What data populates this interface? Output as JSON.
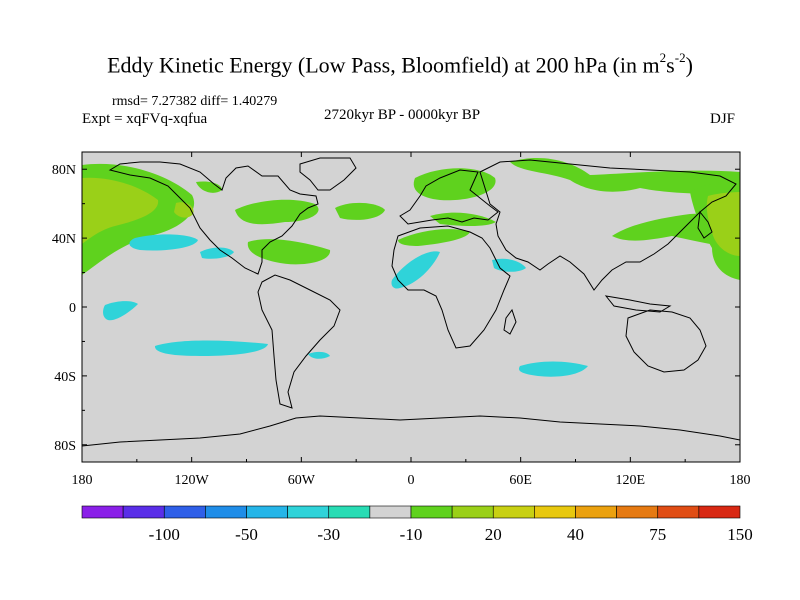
{
  "title": {
    "main": "Eddy Kinetic Energy (Low Pass, Bloomfield) at 200 hPa (in m",
    "sup1": "2",
    "mid": "s",
    "sup2": "-2",
    "end": ")"
  },
  "stats": "rmsd= 7.27382 diff= 1.40279",
  "experiment": "Expt = xqFVq-xqfua",
  "period": "2720kyr BP - 0000kyr BP",
  "season": "DJF",
  "axes": {
    "lat_labels": [
      "80N",
      "40N",
      "0",
      "40S",
      "80S"
    ],
    "lat_values": [
      80,
      40,
      0,
      -40,
      -80
    ],
    "lon_labels": [
      "180",
      "120W",
      "60W",
      "0",
      "60E",
      "120E",
      "180"
    ],
    "lon_values": [
      -180,
      -120,
      -60,
      0,
      60,
      120,
      180
    ]
  },
  "colorbar": {
    "labels": [
      "-100",
      "-50",
      "-30",
      "-10",
      "20",
      "40",
      "75",
      "150"
    ],
    "colors": [
      "#8a1fe8",
      "#5a2ee8",
      "#2f5fe8",
      "#1f8de8",
      "#25b5e8",
      "#2fd3d9",
      "#28dcb4",
      "#d3d3d3",
      "#5fd21e",
      "#9ad018",
      "#c8d013",
      "#e8c80f",
      "#eba10f",
      "#e67a12",
      "#e04d14",
      "#d82813"
    ]
  },
  "colors": {
    "background": "#d3d3d3",
    "positive_low": "#5fd21e",
    "positive_mid": "#9ad018",
    "negative_low": "#2fd3d9"
  }
}
